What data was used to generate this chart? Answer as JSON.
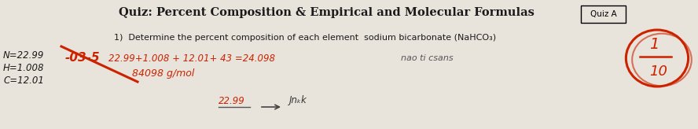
{
  "background_color": "#e8e4dc",
  "title": "Quiz: Percent Composition & Empirical and Molecular Formulas",
  "quiz_label": "Quiz A",
  "question": "1)  Determine the percent composition of each element  sodium bicarbonate (NaHCO₃)",
  "left_notes": [
    "N=22.99",
    "H=1.008",
    "C=12.01"
  ],
  "red_minus03_5": "-03-5",
  "red_math": "22.99+1.008 + 12.01+ 43 =24.098",
  "red_note": "nao ti csans",
  "red_mw": "84098 g/mol",
  "red_bottom_num": "22.99",
  "score_num": "1",
  "score_den": "10",
  "bottom_right": "Jnₖk"
}
